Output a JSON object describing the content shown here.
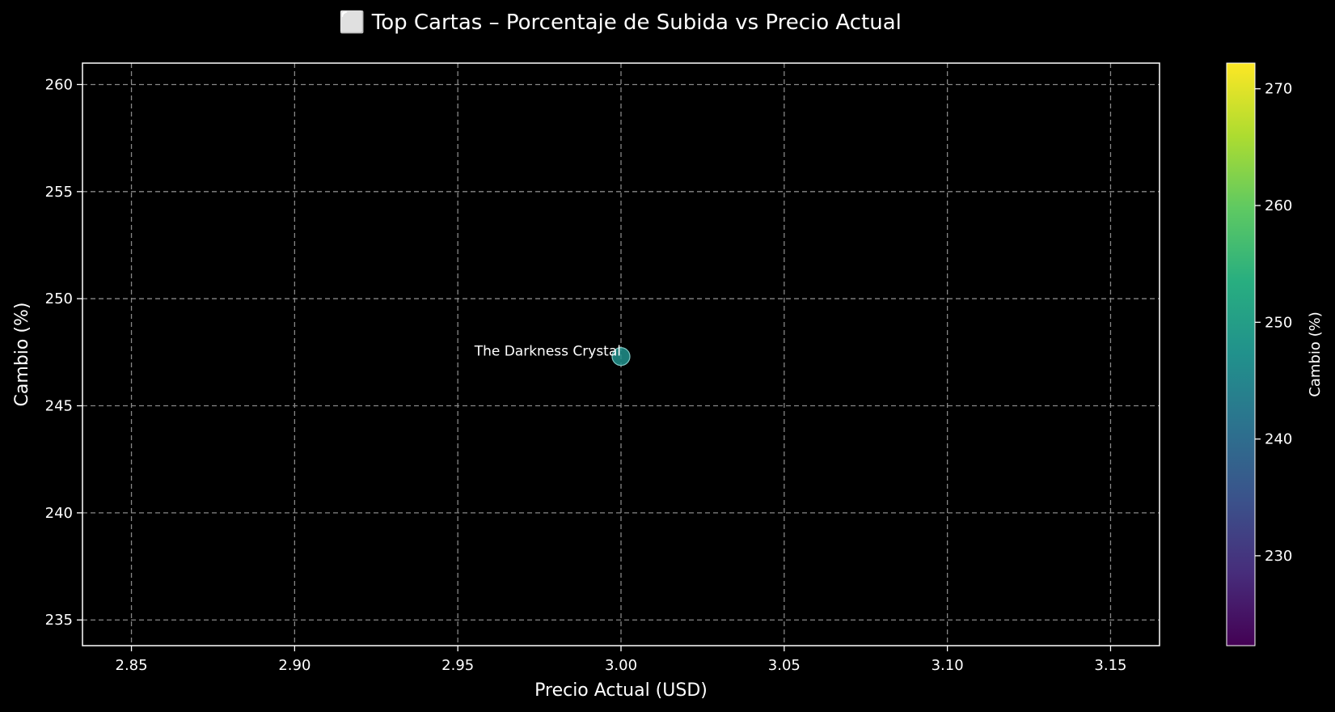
{
  "chart_data": {
    "type": "scatter",
    "title": "⬜ Top Cartas – Porcentaje de Subida vs Precio Actual",
    "xlabel": "Precio Actual (USD)",
    "ylabel": "Cambio (%)",
    "xlim": [
      2.835,
      3.165
    ],
    "ylim": [
      233.8,
      261.0
    ],
    "x_ticks": [
      "2.85",
      "2.90",
      "2.95",
      "3.00",
      "3.05",
      "3.10",
      "3.15"
    ],
    "x_tick_values": [
      2.85,
      2.9,
      2.95,
      3.0,
      3.05,
      3.1,
      3.15
    ],
    "y_ticks": [
      "235",
      "240",
      "245",
      "250",
      "255",
      "260"
    ],
    "y_tick_values": [
      235,
      240,
      245,
      250,
      255,
      260
    ],
    "grid": true,
    "points": [
      {
        "label": "The Darkness Crystal",
        "x": 3.0,
        "y": 247.3
      }
    ],
    "colorbar": {
      "label": "Cambio (%)",
      "colormap": "viridis",
      "range": [
        222.3,
        272.2
      ],
      "ticks": [
        "230",
        "240",
        "250",
        "260",
        "270"
      ],
      "tick_values": [
        230,
        240,
        250,
        260,
        270
      ]
    },
    "colors": {
      "background": "#000000",
      "axes": "#ffffff",
      "grid": "#888888",
      "point": "#21918c"
    }
  }
}
